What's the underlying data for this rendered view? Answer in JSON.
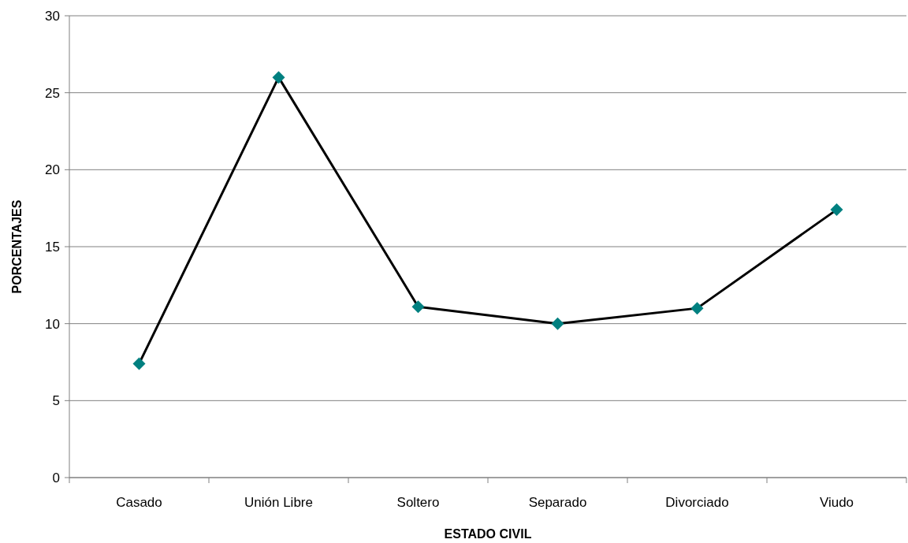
{
  "chart_data": {
    "type": "line",
    "xlabel": "ESTADO CIVIL",
    "ylabel": "PORCENTAJES",
    "categories": [
      "Casado",
      "Unión Libre",
      "Soltero",
      "Separado",
      "Divorciado",
      "Viudo"
    ],
    "series": [
      {
        "color": "#000000",
        "colors": [
          "#008080",
          "#008080",
          "#008080",
          "#008080",
          "#008080",
          "#008080"
        ],
        "values": [
          7.4,
          26,
          11.1,
          10,
          11,
          17.4
        ]
      }
    ],
    "ylim": [
      0,
      30
    ],
    "yticks": [
      0,
      5,
      10,
      15,
      20,
      25,
      30
    ],
    "grid": "y",
    "marker": "diamond",
    "line_style": "solid"
  }
}
